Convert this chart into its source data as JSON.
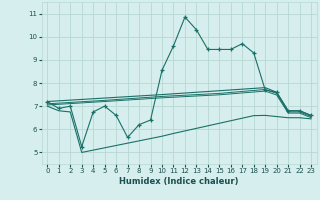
{
  "xlabel": "Humidex (Indice chaleur)",
  "background_color": "#d6eeed",
  "grid_color": "#b8d8d4",
  "line_color": "#1a7068",
  "xlim": [
    -0.5,
    23.5
  ],
  "ylim": [
    4.5,
    11.5
  ],
  "xticks": [
    0,
    1,
    2,
    3,
    4,
    5,
    6,
    7,
    8,
    9,
    10,
    11,
    12,
    13,
    14,
    15,
    16,
    17,
    18,
    19,
    20,
    21,
    22,
    23
  ],
  "yticks": [
    5,
    6,
    7,
    8,
    9,
    10,
    11
  ],
  "main_x": [
    0,
    1,
    2,
    3,
    4,
    5,
    6,
    7,
    8,
    9,
    10,
    11,
    12,
    13,
    14,
    15,
    16,
    17,
    18,
    19,
    20,
    21,
    22,
    23
  ],
  "main_y": [
    7.2,
    6.9,
    7.0,
    5.25,
    6.75,
    7.0,
    6.6,
    5.65,
    6.2,
    6.4,
    8.55,
    9.6,
    10.85,
    10.3,
    9.45,
    9.45,
    9.45,
    9.7,
    9.3,
    7.7,
    7.6,
    6.8,
    6.8,
    6.6
  ],
  "upper_x": [
    0,
    5,
    10,
    19,
    20,
    21,
    22,
    23
  ],
  "upper_y": [
    7.2,
    7.35,
    7.5,
    7.8,
    7.6,
    6.8,
    6.8,
    6.6
  ],
  "mid_upper_x": [
    0,
    5,
    10,
    15,
    19,
    20,
    21,
    22,
    23
  ],
  "mid_upper_y": [
    7.1,
    7.25,
    7.42,
    7.55,
    7.72,
    7.55,
    6.75,
    6.75,
    6.55
  ],
  "mid_lower_x": [
    0,
    5,
    10,
    15,
    19,
    20,
    21,
    22,
    23
  ],
  "mid_lower_y": [
    7.05,
    7.2,
    7.36,
    7.49,
    7.65,
    7.48,
    6.7,
    6.7,
    6.5
  ],
  "lower_x": [
    0,
    1,
    2,
    3,
    4,
    5,
    6,
    7,
    8,
    9,
    10,
    11,
    12,
    13,
    14,
    15,
    16,
    17,
    18,
    19,
    20,
    21,
    22,
    23
  ],
  "lower_y": [
    7.0,
    6.8,
    6.75,
    5.0,
    5.1,
    5.2,
    5.3,
    5.4,
    5.5,
    5.6,
    5.7,
    5.82,
    5.93,
    6.04,
    6.15,
    6.26,
    6.37,
    6.48,
    6.59,
    6.6,
    6.55,
    6.5,
    6.5,
    6.45
  ]
}
